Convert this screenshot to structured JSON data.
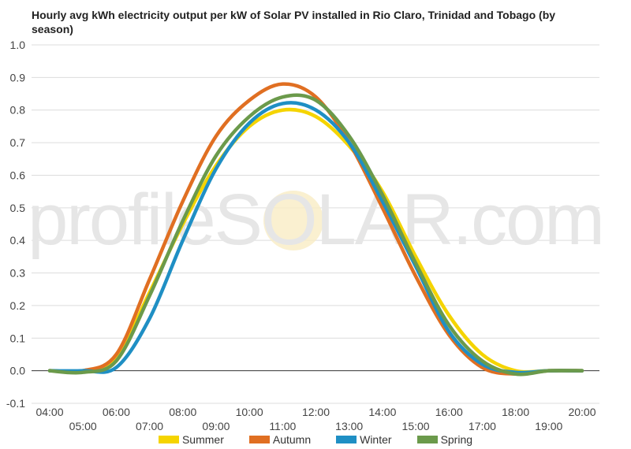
{
  "colors": {
    "Summer": "#f5d400",
    "Autumn": "#e06f22",
    "Winter": "#1f8fc4",
    "Spring": "#6b9a4b"
  },
  "chart_data": {
    "type": "line",
    "title": "Hourly avg kWh electricity output per kW of Solar PV installed in Rio Claro, Trinidad and Tobago (by season)",
    "watermark": "profileSOLAR.com",
    "x": [
      "04:00",
      "05:00",
      "06:00",
      "07:00",
      "08:00",
      "09:00",
      "10:00",
      "11:00",
      "12:00",
      "13:00",
      "14:00",
      "15:00",
      "16:00",
      "17:00",
      "18:00",
      "19:00",
      "20:00"
    ],
    "ylim": [
      -0.1,
      1.0
    ],
    "yticks": [
      "1.0",
      "0.9",
      "0.8",
      "0.7",
      "0.6",
      "0.5",
      "0.4",
      "0.3",
      "0.2",
      "0.1",
      "0.0",
      "-0.1"
    ],
    "grid": true,
    "legend_position": "bottom",
    "series": [
      {
        "name": "Summer",
        "values": [
          0,
          0,
          0.04,
          0.24,
          0.45,
          0.63,
          0.75,
          0.8,
          0.78,
          0.69,
          0.55,
          0.35,
          0.17,
          0.05,
          0.0,
          0,
          0
        ]
      },
      {
        "name": "Autumn",
        "values": [
          0,
          0,
          0.05,
          0.28,
          0.52,
          0.72,
          0.83,
          0.88,
          0.84,
          0.7,
          0.5,
          0.29,
          0.11,
          0.01,
          -0.01,
          0,
          0
        ]
      },
      {
        "name": "Winter",
        "values": [
          0,
          0,
          0.01,
          0.16,
          0.4,
          0.62,
          0.76,
          0.82,
          0.8,
          0.7,
          0.52,
          0.32,
          0.12,
          0.02,
          -0.005,
          0,
          0
        ]
      },
      {
        "name": "Spring",
        "values": [
          0,
          -0.005,
          0.03,
          0.23,
          0.46,
          0.66,
          0.78,
          0.84,
          0.83,
          0.72,
          0.54,
          0.33,
          0.14,
          0.03,
          -0.01,
          0,
          0
        ]
      }
    ]
  }
}
